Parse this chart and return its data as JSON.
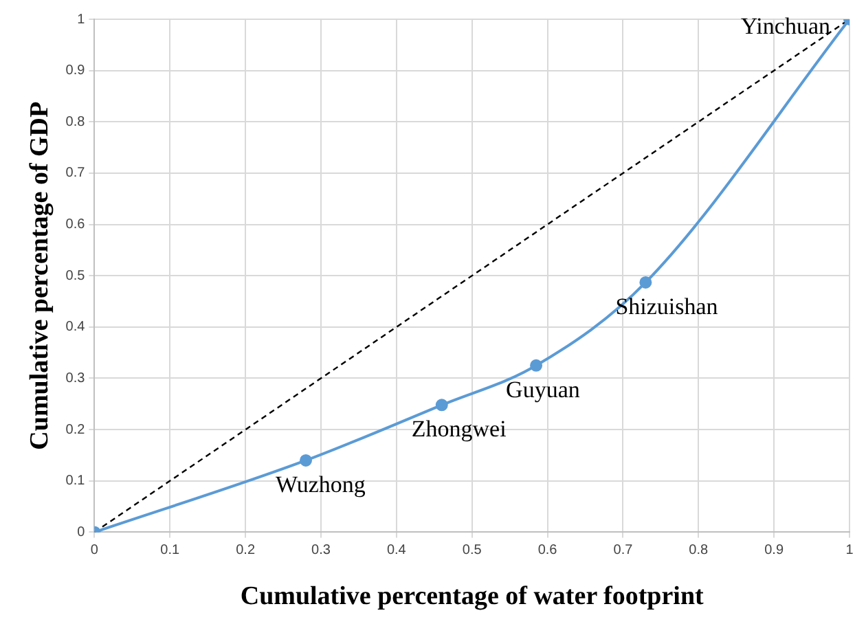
{
  "chart_data": {
    "type": "line",
    "xlabel": "Cumulative percentage of water footprint",
    "ylabel": "Cumulative percentage of GDP",
    "xlim": [
      0,
      1
    ],
    "ylim": [
      0,
      1
    ],
    "xticks": [
      0,
      0.1,
      0.2,
      0.3,
      0.4,
      0.5,
      0.6,
      0.7,
      0.8,
      0.9,
      1
    ],
    "yticks": [
      0,
      0.1,
      0.2,
      0.3,
      0.4,
      0.5,
      0.6,
      0.7,
      0.8,
      0.9,
      1
    ],
    "grid": true,
    "legend": false,
    "series": [
      {
        "color": "#5b9bd5",
        "x": [
          0,
          0.28,
          0.46,
          0.585,
          0.73,
          1
        ],
        "values": [
          0,
          0.14,
          0.248,
          0.325,
          0.487,
          1
        ],
        "marker": "circle",
        "line_style": "solid"
      },
      {
        "color": "#000000",
        "x": [
          0,
          1
        ],
        "values": [
          0,
          1
        ],
        "marker": "none",
        "line_style": "dashed"
      }
    ],
    "annotations": [
      {
        "text": "Wuzhong",
        "x": 0.28,
        "y": 0.14
      },
      {
        "text": "Zhongwei",
        "x": 0.46,
        "y": 0.248
      },
      {
        "text": "Guyuan",
        "x": 0.585,
        "y": 0.325
      },
      {
        "text": "Shizuishan",
        "x": 0.73,
        "y": 0.487
      },
      {
        "text": "Yinchuan",
        "x": 1,
        "y": 1
      }
    ]
  }
}
